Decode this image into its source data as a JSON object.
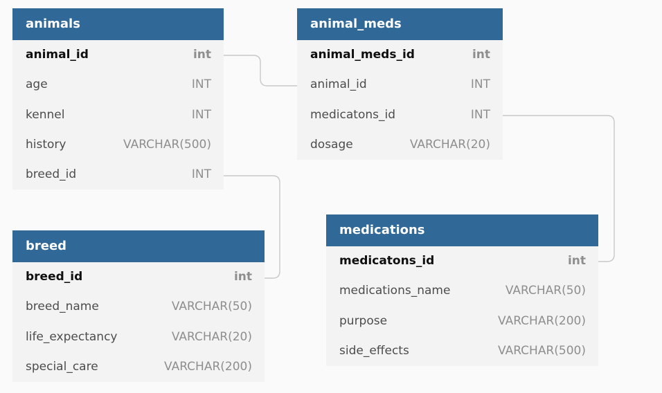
{
  "tables": {
    "animals": {
      "title": "animals",
      "rows": [
        {
          "name": "animal_id",
          "type": "int",
          "pk": true
        },
        {
          "name": "age",
          "type": "INT"
        },
        {
          "name": "kennel",
          "type": "INT"
        },
        {
          "name": "history",
          "type": "VARCHAR(500)"
        },
        {
          "name": "breed_id",
          "type": "INT"
        }
      ]
    },
    "animal_meds": {
      "title": "animal_meds",
      "rows": [
        {
          "name": "animal_meds_id",
          "type": "int",
          "pk": true
        },
        {
          "name": "animal_id",
          "type": "INT"
        },
        {
          "name": "medicatons_id",
          "type": "INT"
        },
        {
          "name": "dosage",
          "type": "VARCHAR(20)"
        }
      ]
    },
    "breed": {
      "title": "breed",
      "rows": [
        {
          "name": "breed_id",
          "type": "int",
          "pk": true
        },
        {
          "name": "breed_name",
          "type": "VARCHAR(50)"
        },
        {
          "name": "life_expectancy",
          "type": "VARCHAR(20)"
        },
        {
          "name": "special_care",
          "type": "VARCHAR(200)"
        }
      ]
    },
    "medications": {
      "title": "medications",
      "rows": [
        {
          "name": "medicatons_id",
          "type": "int",
          "pk": true
        },
        {
          "name": "medications_name",
          "type": "VARCHAR(50)"
        },
        {
          "name": "purpose",
          "type": "VARCHAR(200)"
        },
        {
          "name": "side_effects",
          "type": "VARCHAR(500)"
        }
      ]
    }
  },
  "relationships": [
    {
      "from": "animals.animal_id",
      "to": "animal_meds.animal_id"
    },
    {
      "from": "animals.breed_id",
      "to": "breed.breed_id"
    },
    {
      "from": "animal_meds.medicatons_id",
      "to": "medications.medicatons_id"
    }
  ],
  "colors": {
    "header_bg": "#306898",
    "header_text": "#ffffff",
    "table_bg": "#f3f3f4",
    "page_bg": "#fafafb",
    "connector": "#c8c8c8"
  }
}
